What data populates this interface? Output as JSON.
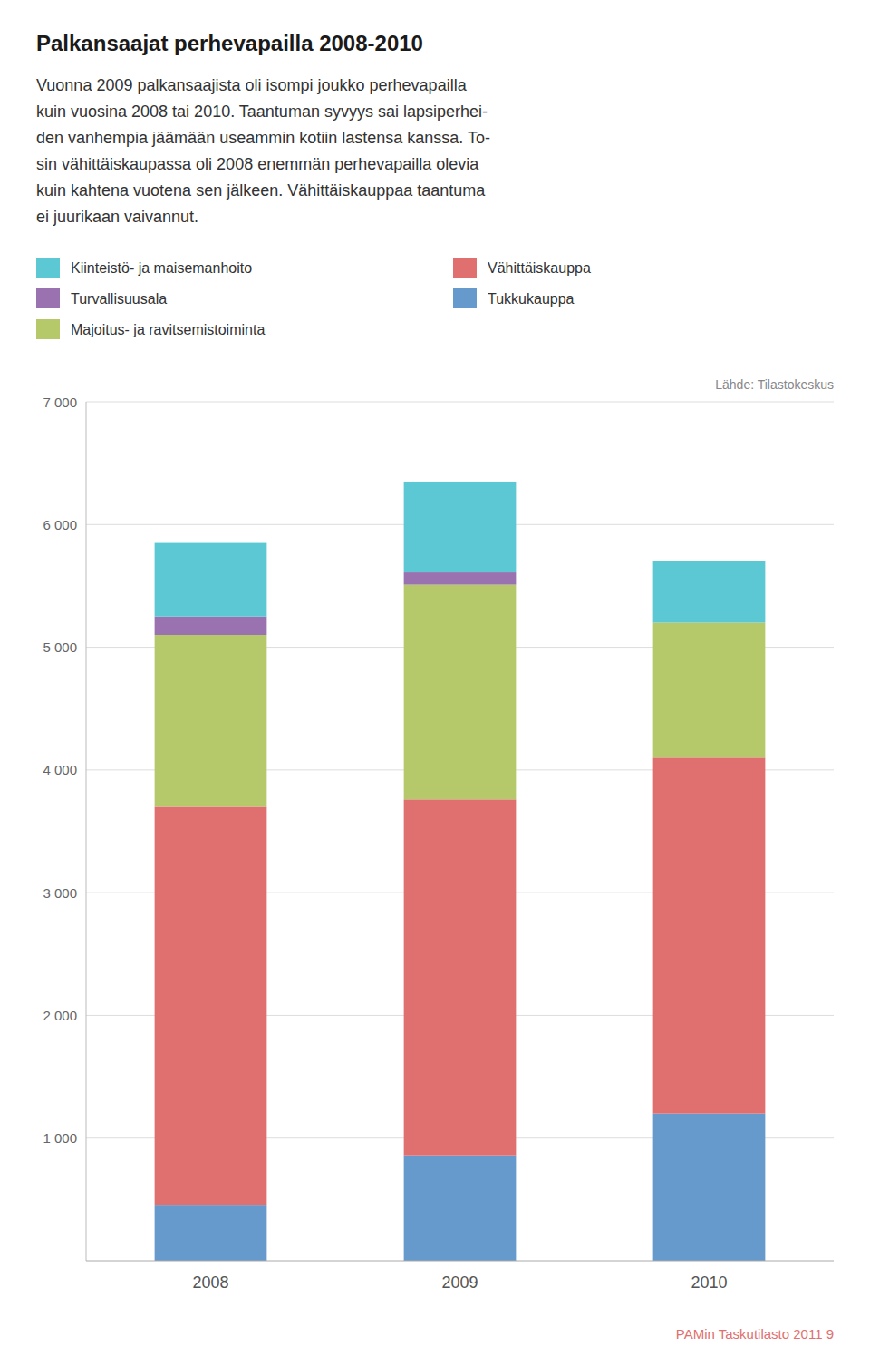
{
  "chart_data": {
    "type": "bar",
    "stacked": true,
    "title": "Palkansaajat perhevapailla 2008-2010",
    "subtitle": [
      "Vuonna 2009 palkansaajista oli isompi joukko perhevapailla",
      "kuin vuosina 2008 tai 2010. Taantuman syvyys sai lapsiperhei-",
      "den vanhempia jäämään useammin kotiin lastensa kanssa. To-",
      "sin vähittäiskaupassa oli 2008 enemmän perhevapailla olevia",
      "kuin kahtena vuotena sen jälkeen. Vähittäiskauppaa taantuma",
      "ei juurikaan vaivannut."
    ],
    "annotations": [
      "Lähde: Tilastokeskus",
      "PAMin Taskutilasto 2011  9"
    ],
    "categories": [
      "2008",
      "2009",
      "2010"
    ],
    "series": [
      {
        "name": "Tukkukauppa",
        "color": "#6699cc",
        "values": [
          450,
          860,
          1200
        ]
      },
      {
        "name": "Vähittäiskauppa",
        "color": "#e07070",
        "values": [
          3250,
          2900,
          2900
        ]
      },
      {
        "name": "Majoitus- ja ravitsemistoiminta",
        "color": "#b5c96a",
        "values": [
          1400,
          1750,
          1100
        ]
      },
      {
        "name": "Turvallisuusala",
        "color": "#9b72b0",
        "values": [
          150,
          100,
          0
        ]
      },
      {
        "name": "Kiinteistö- ja maisemanhoito",
        "color": "#5bc8d4",
        "values": [
          600,
          740,
          500
        ]
      }
    ],
    "ylim": [
      0,
      7000
    ],
    "yticks": [
      {
        "value": 1000,
        "label": "1 000"
      },
      {
        "value": 2000,
        "label": "2 000"
      },
      {
        "value": 3000,
        "label": "3 000"
      },
      {
        "value": 4000,
        "label": "4 000"
      },
      {
        "value": 5000,
        "label": "5 000"
      },
      {
        "value": 6000,
        "label": "6 000"
      },
      {
        "value": 7000,
        "label": "7 000"
      }
    ],
    "grid": true,
    "legend": "top"
  }
}
